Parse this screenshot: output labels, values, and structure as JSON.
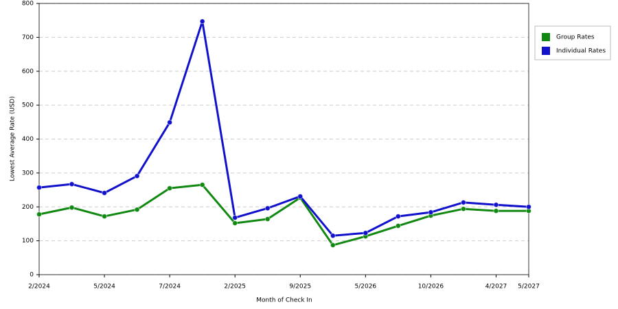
{
  "chart_data": {
    "type": "line",
    "x_label": "Month of Check In",
    "y_label": "Lowest Average Rate (USD)",
    "categories": [
      "2/2024",
      null,
      "5/2024",
      null,
      "7/2024",
      null,
      "2/2025",
      null,
      "9/2025",
      null,
      "5/2026",
      null,
      "10/2026",
      null,
      "4/2027",
      "5/2027"
    ],
    "series": [
      {
        "name": "Group Rates",
        "color": "#118811",
        "values": [
          178,
          198,
          172,
          192,
          255,
          265,
          152,
          164,
          227,
          87,
          113,
          144,
          174,
          194,
          188,
          188
        ]
      },
      {
        "name": "Individual Rates",
        "color": "#1111cc",
        "values": [
          257,
          267,
          241,
          291,
          449,
          747,
          168,
          196,
          231,
          115,
          123,
          172,
          184,
          213,
          206,
          200
        ]
      }
    ],
    "ylim": [
      0,
      800
    ],
    "yticks": [
      0,
      100,
      200,
      300,
      400,
      500,
      600,
      700,
      800
    ],
    "grid": true,
    "legend": "right"
  }
}
